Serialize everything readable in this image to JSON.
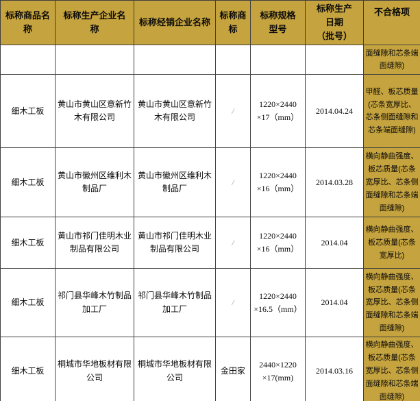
{
  "colors": {
    "header_bg": "#C5A33E",
    "failed_items_col_bg": "#C5A33E",
    "grid_line": "#3F3F3F",
    "text": "#0A0A0A",
    "slash_gray": "#999999",
    "page_bg": "#FFFFFF"
  },
  "table": {
    "headers": [
      "标称商品名\n称",
      "标称生产企业名\n称",
      "标称经销企业名称",
      "标称商\n标",
      "标称规格\n型号",
      "标称生产\n日期\n（批号）",
      "不合格项"
    ],
    "rows": [
      {
        "cells": [
          "",
          "",
          "",
          "",
          "",
          "",
          "面缝隙和芯条端面缝隙)"
        ]
      },
      {
        "cells": [
          "细木工板",
          "黄山市黄山区意新竹木有限公司",
          "黄山市黄山区意新竹木有限公司",
          "/",
          "1220×2440\n×17（mm）",
          "2014.04.24",
          "甲醛、板芯质量(芯条宽厚比、芯条侧面缝隙和芯条端面缝隙)"
        ]
      },
      {
        "cells": [
          "细木工板",
          "黄山市徽州区维利木制品厂",
          "黄山市徽州区维利木制品厂",
          "/",
          "1220×2440\n×16（mm）",
          "2014.03.28",
          "横向静曲强度、板芯质量(芯条宽厚比、芯条侧面缝隙和芯条端面缝隙)"
        ]
      },
      {
        "cells": [
          "细木工板",
          "黄山市祁门佳明木业制品有限公司",
          "黄山市祁门佳明木业制品有限公司",
          "/",
          "1220×2440\n×16（mm）",
          "2014.04",
          "横向静曲强度、板芯质量(芯条宽厚比)"
        ]
      },
      {
        "cells": [
          "细木工板",
          "祁门县华峰木竹制品加工厂",
          "祁门县华峰木竹制品加工厂",
          "/",
          "1220×2440\n×16.5（mm）",
          "2014.04",
          "横向静曲强度、板芯质量(芯条宽厚比、芯条侧面缝隙和芯条端面缝隙)"
        ]
      },
      {
        "cells": [
          "细木工板",
          "桐城市华地板材有限公司",
          "桐城市华地板材有限公司",
          "金田家",
          "2440×1220\n×17(mm)",
          "2014.03.16",
          "横向静曲强度、板芯质量(芯条宽厚比、芯条侧面缝隙和芯条端面缝隙)"
        ]
      }
    ]
  }
}
